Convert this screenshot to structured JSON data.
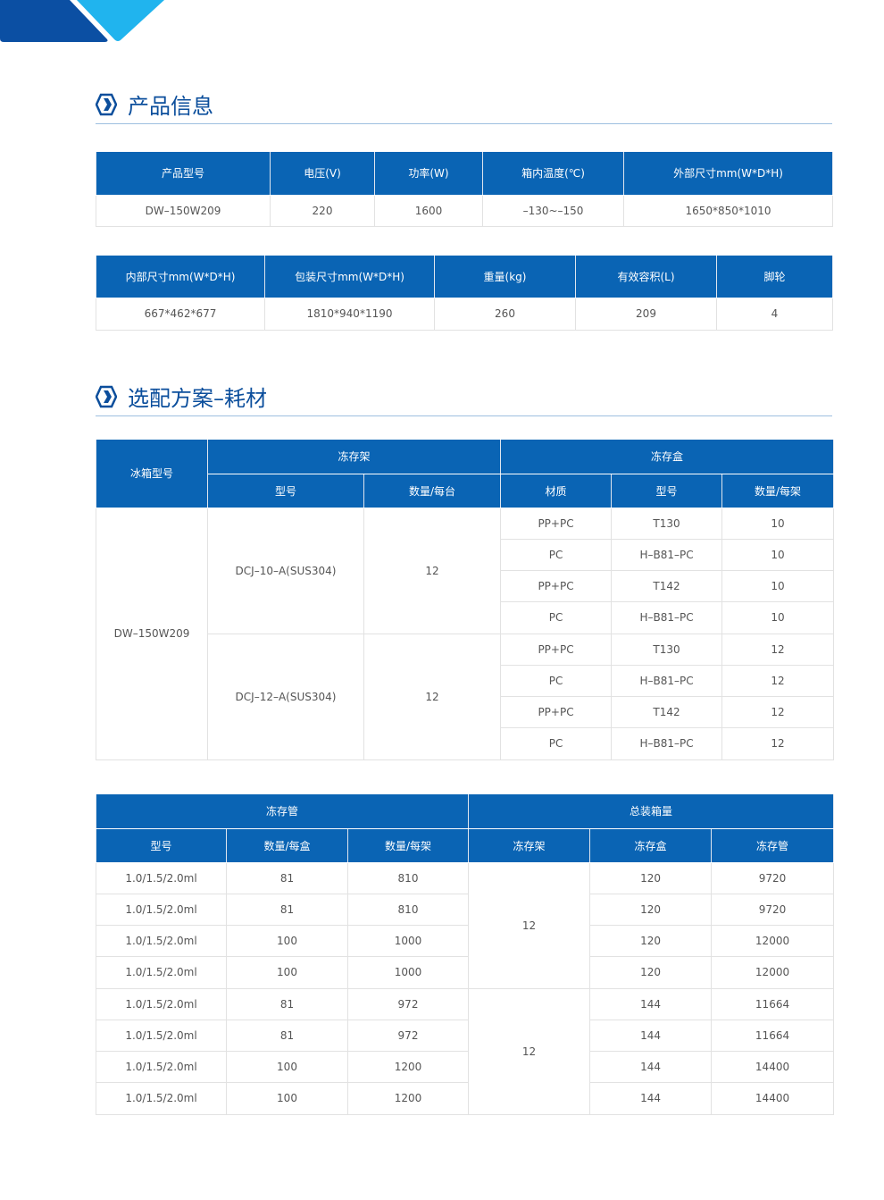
{
  "sections": {
    "product_info": "产品信息",
    "options": "选配方案–耗材"
  },
  "colors": {
    "header_bg": "#0a64b4",
    "title": "#0b4e9c",
    "deco_dark": "#0b4fa3",
    "deco_light": "#20b4ee"
  },
  "table1": {
    "headers": [
      "产品型号",
      "电压(V)",
      "功率(W)",
      "箱内温度(℃)",
      "外部尺寸mm(W*D*H)"
    ],
    "row": [
      "DW–150W209",
      "220",
      "1600",
      "–130~–150",
      "1650*850*1010"
    ]
  },
  "table2": {
    "headers": [
      "内部尺寸mm(W*D*H)",
      "包装尺寸mm(W*D*H)",
      "重量(kg)",
      "有效容积(L)",
      "脚轮"
    ],
    "row": [
      "667*462*677",
      "1810*940*1190",
      "260",
      "209",
      "4"
    ]
  },
  "table3": {
    "fridge_model_header": "冰箱型号",
    "rack_header": "冻存架",
    "box_header": "冻存盒",
    "sub_headers": [
      "型号",
      "数量/每台",
      "材质",
      "型号",
      "数量/每架"
    ],
    "fridge_model": "DW–150W209",
    "racks": [
      {
        "model": "DCJ–10–A(SUS304)",
        "qty": "12",
        "boxes": [
          [
            "PP+PC",
            "T130",
            "10"
          ],
          [
            "PC",
            "H–B81–PC",
            "10"
          ],
          [
            "PP+PC",
            "T142",
            "10"
          ],
          [
            "PC",
            "H–B81–PC",
            "10"
          ]
        ]
      },
      {
        "model": "DCJ–12–A(SUS304)",
        "qty": "12",
        "boxes": [
          [
            "PP+PC",
            "T130",
            "12"
          ],
          [
            "PC",
            "H–B81–PC",
            "12"
          ],
          [
            "PP+PC",
            "T142",
            "12"
          ],
          [
            "PC",
            "H–B81–PC",
            "12"
          ]
        ]
      }
    ]
  },
  "table4": {
    "tube_header": "冻存管",
    "total_header": "总装箱量",
    "sub_headers": [
      "型号",
      "数量/每盒",
      "数量/每架",
      "冻存架",
      "冻存盒",
      "冻存管"
    ],
    "groups": [
      {
        "racks": "12",
        "rows": [
          [
            "1.0/1.5/2.0ml",
            "81",
            "810",
            "120",
            "9720"
          ],
          [
            "1.0/1.5/2.0ml",
            "81",
            "810",
            "120",
            "9720"
          ],
          [
            "1.0/1.5/2.0ml",
            "100",
            "1000",
            "120",
            "12000"
          ],
          [
            "1.0/1.5/2.0ml",
            "100",
            "1000",
            "120",
            "12000"
          ]
        ]
      },
      {
        "racks": "12",
        "rows": [
          [
            "1.0/1.5/2.0ml",
            "81",
            "972",
            "144",
            "11664"
          ],
          [
            "1.0/1.5/2.0ml",
            "81",
            "972",
            "144",
            "11664"
          ],
          [
            "1.0/1.5/2.0ml",
            "100",
            "1200",
            "144",
            "14400"
          ],
          [
            "1.0/1.5/2.0ml",
            "100",
            "1200",
            "144",
            "14400"
          ]
        ]
      }
    ]
  }
}
